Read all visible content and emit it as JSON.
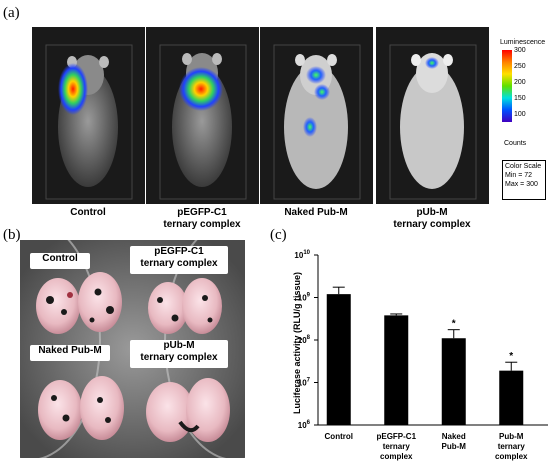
{
  "panel_a": {
    "letter": "(a)",
    "captions": [
      {
        "line1": "Control",
        "line2": ""
      },
      {
        "line1": "pEGFP-C1",
        "line2": "ternary complex"
      },
      {
        "line1": "Naked Pub-M",
        "line2": ""
      },
      {
        "line1": "pUb-M",
        "line2": "ternary complex"
      }
    ],
    "colorbar": {
      "title": "Luminescence",
      "ticks": [
        "300",
        "250",
        "200",
        "150",
        "100"
      ],
      "counts_label": "Counts",
      "scale_title": "Color Scale",
      "scale_min": "Min = 72",
      "scale_max": "Max = 300"
    }
  },
  "panel_b": {
    "letter": "(b)",
    "labels": [
      {
        "line1": "Control",
        "line2": ""
      },
      {
        "line1": "pEGFP-C1",
        "line2": "ternary complex"
      },
      {
        "line1": "Naked Pub-M",
        "line2": ""
      },
      {
        "line1": "pUb-M",
        "line2": "ternary complex"
      }
    ]
  },
  "panel_c": {
    "letter": "(c)"
  },
  "chart_data": {
    "type": "bar",
    "categories": [
      "Control",
      "pEGFP-C1 ternary complex",
      "Naked Pub-M",
      "Pub-M ternary complex"
    ],
    "category_lines": [
      [
        "Control"
      ],
      [
        "pEGFP-C1",
        "ternary",
        "complex"
      ],
      [
        "Naked",
        "Pub-M"
      ],
      [
        "Pub-M",
        "ternary",
        "complex"
      ]
    ],
    "values": [
      1200000000,
      380000000,
      110000000,
      19000000
    ],
    "error_upper": [
      1750000000,
      410000000,
      175000000,
      30000000
    ],
    "significance": [
      "",
      "",
      "*",
      "*"
    ],
    "ylabel": "Luciferase activity (RLU/g tissue)",
    "y_scale": "log",
    "ylim": [
      1000000,
      10000000000
    ],
    "y_ticks": [
      {
        "base": "10",
        "exp": "10",
        "value": 10000000000
      },
      {
        "base": "10",
        "exp": "9",
        "value": 1000000000
      },
      {
        "base": "10",
        "exp": "8",
        "value": 100000000
      },
      {
        "base": "10",
        "exp": "7",
        "value": 10000000
      },
      {
        "base": "10",
        "exp": "6",
        "value": 1000000
      }
    ],
    "bar_color": "#000000"
  }
}
